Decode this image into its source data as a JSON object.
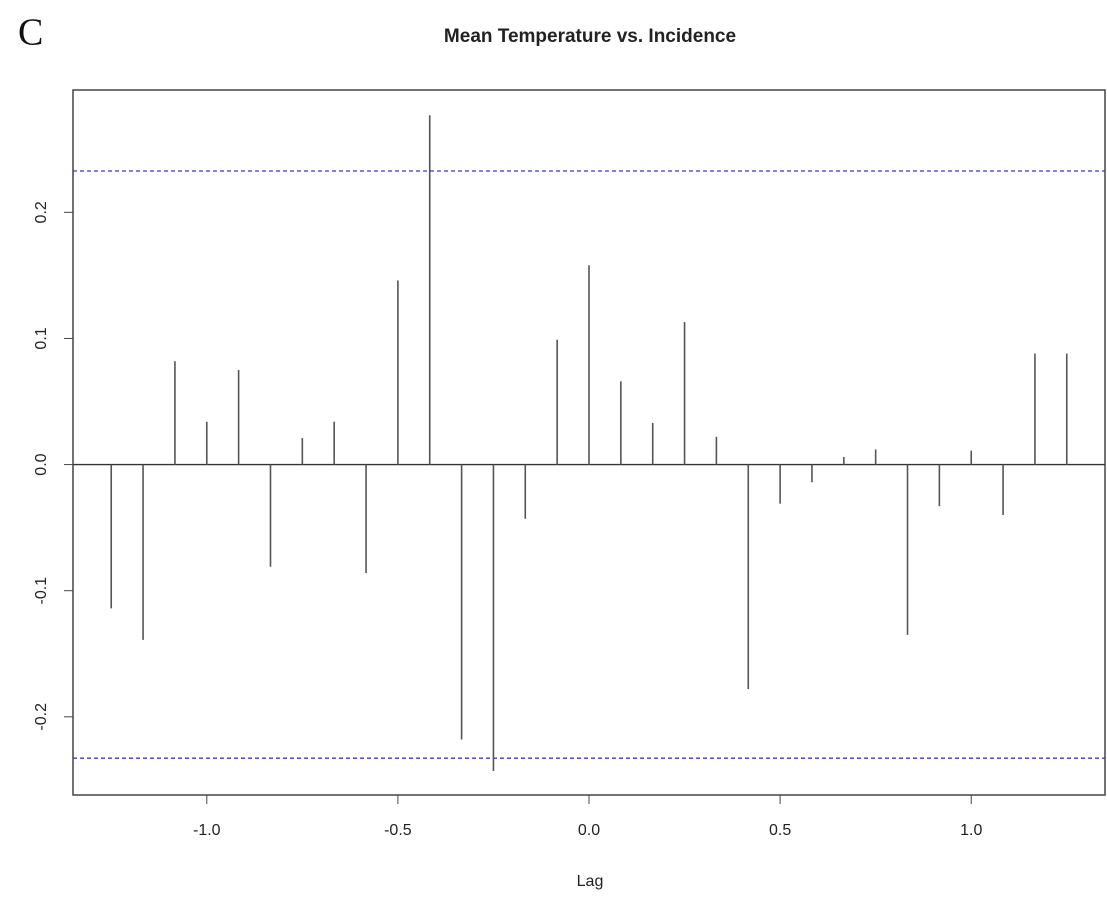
{
  "chart_data": {
    "type": "ccf",
    "panel_label": "C",
    "title": "Mean Temperature vs. Incidence",
    "x_label": "Lag",
    "x": [
      -1.25,
      -1.1667,
      -1.0833,
      -1.0,
      -0.9167,
      -0.8333,
      -0.75,
      -0.6667,
      -0.5833,
      -0.5,
      -0.4167,
      -0.3333,
      -0.25,
      -0.1667,
      -0.0833,
      0.0,
      0.0833,
      0.1667,
      0.25,
      0.3333,
      0.4167,
      0.5,
      0.5833,
      0.6667,
      0.75,
      0.8333,
      0.9167,
      1.0,
      1.0833,
      1.1667,
      1.25
    ],
    "values": [
      -0.114,
      -0.139,
      0.082,
      0.034,
      0.075,
      -0.081,
      0.021,
      0.034,
      -0.086,
      0.146,
      0.277,
      -0.218,
      -0.243,
      -0.043,
      0.099,
      0.158,
      0.066,
      0.033,
      0.113,
      0.022,
      -0.178,
      -0.031,
      -0.014,
      0.006,
      0.012,
      -0.135,
      -0.033,
      0.011,
      -0.04,
      0.088,
      0.088
    ],
    "color": "#555555",
    "xlim": [
      -1.35,
      1.35
    ],
    "ylim": [
      -0.262,
      0.297
    ],
    "xticks": [
      {
        "value": -1,
        "label": "-1.0"
      },
      -0.5,
      {
        "value": 0,
        "label": "0.0"
      },
      0.5,
      {
        "value": 1,
        "label": "1.0"
      }
    ],
    "yticks": [
      -0.2,
      -0.1,
      {
        "value": 0,
        "label": "0.0"
      },
      0.1,
      0.2
    ],
    "confidence_lines": {
      "values": [
        0.2328,
        -0.2328
      ],
      "color": "#3a3acc"
    }
  }
}
